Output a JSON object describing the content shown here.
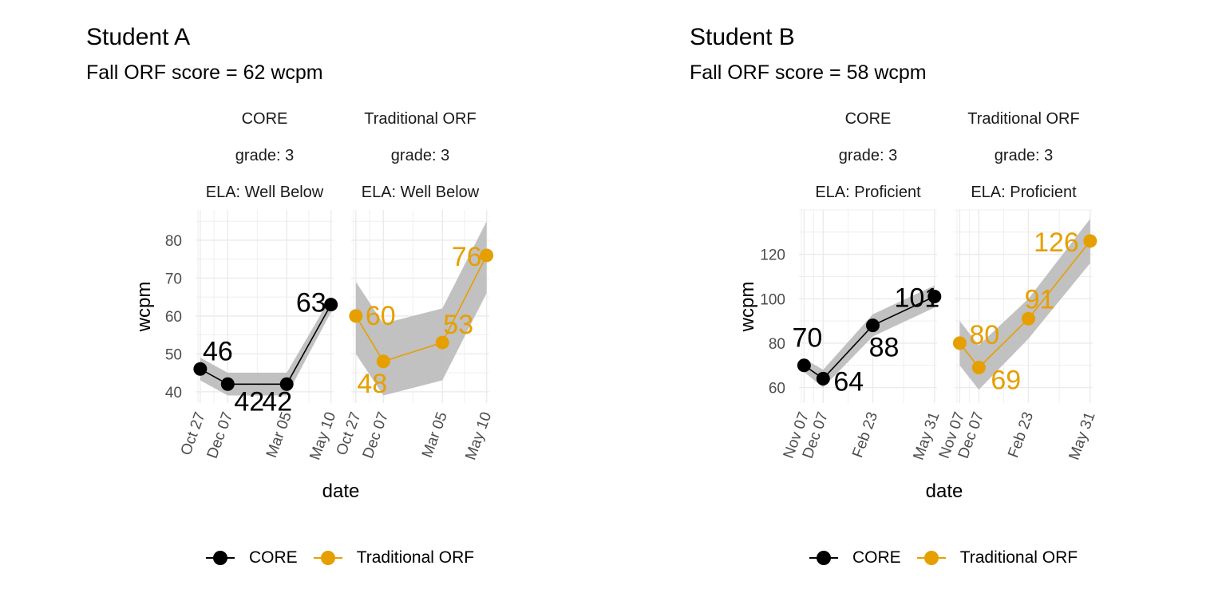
{
  "colors": {
    "core": "#000000",
    "traditional": "#E69F00",
    "band": "#bebebe",
    "grid": "#ebebeb"
  },
  "x_axis_title": "date",
  "y_axis_title": "wcpm",
  "legend": [
    {
      "label": "CORE",
      "color": "#000000"
    },
    {
      "label": "Traditional ORF",
      "color": "#E69F00"
    }
  ],
  "students": [
    {
      "title": "Student A",
      "subtitle": "Fall ORF score = 62 wcpm",
      "grade": "grade: 3",
      "ela": "ELA: Well Below"
    },
    {
      "title": "Student B",
      "subtitle": "Fall ORF score = 58 wcpm",
      "grade": "grade: 3",
      "ela": "ELA: Proficient"
    }
  ],
  "chart_data": [
    {
      "type": "line",
      "title": "Student A",
      "subtitle": "Fall ORF score = 62 wcpm",
      "xlabel": "date",
      "ylabel": "wcpm",
      "ylim": [
        37,
        88
      ],
      "yticks": [
        40,
        50,
        60,
        70,
        80
      ],
      "grid": true,
      "legend": "bottom",
      "xlim": [
        "2020-10-20",
        "2021-05-14"
      ],
      "xticks": [
        {
          "date": "2020-10-27",
          "label": "Oct 27"
        },
        {
          "date": "2020-12-07",
          "label": "Dec 07"
        },
        {
          "date": "2021-03-05",
          "label": "Mar 05"
        },
        {
          "date": "2021-05-10",
          "label": "May 10"
        }
      ],
      "facets": [
        {
          "strip": [
            "CORE",
            "grade: 3",
            "ELA: Well Below"
          ],
          "series": "CORE",
          "points": [
            {
              "date": "2020-10-27",
              "wcpm": 46,
              "lo": 43,
              "hi": 49,
              "label": "46"
            },
            {
              "date": "2020-12-07",
              "wcpm": 42,
              "lo": 39,
              "hi": 45,
              "label": "42"
            },
            {
              "date": "2021-03-05",
              "wcpm": 42,
              "lo": 39,
              "hi": 45,
              "label": "42"
            },
            {
              "date": "2021-05-10",
              "wcpm": 63,
              "lo": 61,
              "hi": 65,
              "label": "63"
            }
          ]
        },
        {
          "strip": [
            "Traditional ORF",
            "grade: 3",
            "ELA: Well Below"
          ],
          "series": "Traditional ORF",
          "points": [
            {
              "date": "2020-10-27",
              "wcpm": 60,
              "lo": 50,
              "hi": 69,
              "label": "60"
            },
            {
              "date": "2020-12-07",
              "wcpm": 48,
              "lo": 39,
              "hi": 58,
              "label": "48"
            },
            {
              "date": "2021-03-05",
              "wcpm": 53,
              "lo": 43,
              "hi": 62,
              "label": "53"
            },
            {
              "date": "2021-05-10",
              "wcpm": 76,
              "lo": 66,
              "hi": 85,
              "label": "76"
            }
          ]
        }
      ]
    },
    {
      "type": "line",
      "title": "Student B",
      "subtitle": "Fall ORF score = 58 wcpm",
      "xlabel": "date",
      "ylabel": "wcpm",
      "ylim": [
        53,
        140
      ],
      "yticks": [
        60,
        80,
        100,
        120
      ],
      "grid": true,
      "legend": "bottom",
      "xlim": [
        "2020-10-30",
        "2021-06-04"
      ],
      "xticks": [
        {
          "date": "2020-11-07",
          "label": "Nov 07"
        },
        {
          "date": "2020-12-07",
          "label": "Dec 07"
        },
        {
          "date": "2021-02-23",
          "label": "Feb 23"
        },
        {
          "date": "2021-05-31",
          "label": "May 31"
        }
      ],
      "facets": [
        {
          "strip": [
            "CORE",
            "grade: 3",
            "ELA: Proficient"
          ],
          "series": "CORE",
          "points": [
            {
              "date": "2020-11-07",
              "wcpm": 70,
              "lo": 67,
              "hi": 73,
              "label": "70"
            },
            {
              "date": "2020-12-07",
              "wcpm": 64,
              "lo": 60,
              "hi": 68,
              "label": "64"
            },
            {
              "date": "2021-02-23",
              "wcpm": 88,
              "lo": 83,
              "hi": 93,
              "label": "88"
            },
            {
              "date": "2021-05-31",
              "wcpm": 101,
              "lo": 96,
              "hi": 106,
              "label": "101"
            }
          ]
        },
        {
          "strip": [
            "Traditional ORF",
            "grade: 3",
            "ELA: Proficient"
          ],
          "series": "Traditional ORF",
          "points": [
            {
              "date": "2020-11-07",
              "wcpm": 80,
              "lo": 70,
              "hi": 90,
              "label": "80"
            },
            {
              "date": "2020-12-07",
              "wcpm": 69,
              "lo": 59,
              "hi": 79,
              "label": "69"
            },
            {
              "date": "2021-02-23",
              "wcpm": 91,
              "lo": 82,
              "hi": 100,
              "label": "91"
            },
            {
              "date": "2021-05-31",
              "wcpm": 126,
              "lo": 116,
              "hi": 136,
              "label": "126"
            }
          ]
        }
      ]
    }
  ]
}
